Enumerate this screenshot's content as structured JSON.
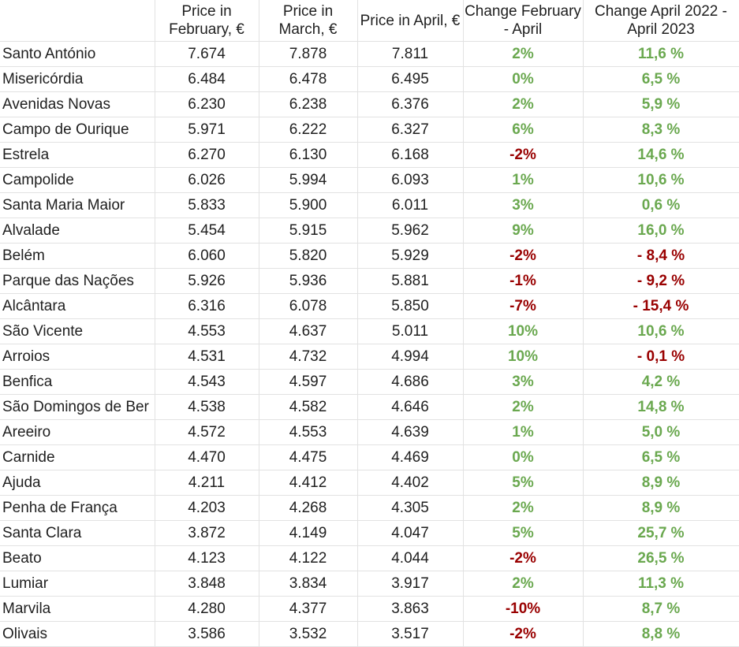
{
  "colors": {
    "positive": "#6aa84f",
    "negative": "#990000"
  },
  "headers": [
    "",
    "Price in February, €",
    "Price in March, €",
    "Price in April, €",
    "Change February - April",
    "Change April 2022 - April 2023"
  ],
  "rows": [
    {
      "name": "Santo António",
      "feb": "7.674",
      "mar": "7.878",
      "apr": "7.811",
      "chg_fa": "2%",
      "chg_yoy": "11,6 %"
    },
    {
      "name": "Misericórdia",
      "feb": "6.484",
      "mar": "6.478",
      "apr": "6.495",
      "chg_fa": "0%",
      "chg_yoy": "6,5 %"
    },
    {
      "name": "Avenidas Novas",
      "feb": "6.230",
      "mar": "6.238",
      "apr": "6.376",
      "chg_fa": "2%",
      "chg_yoy": "5,9 %"
    },
    {
      "name": "Campo de Ourique",
      "feb": "5.971",
      "mar": "6.222",
      "apr": "6.327",
      "chg_fa": "6%",
      "chg_yoy": "8,3 %"
    },
    {
      "name": "Estrela",
      "feb": "6.270",
      "mar": "6.130",
      "apr": "6.168",
      "chg_fa": "-2%",
      "chg_yoy": "14,6 %"
    },
    {
      "name": "Campolide",
      "feb": "6.026",
      "mar": "5.994",
      "apr": "6.093",
      "chg_fa": "1%",
      "chg_yoy": "10,6 %"
    },
    {
      "name": "Santa Maria Maior",
      "feb": "5.833",
      "mar": "5.900",
      "apr": "6.011",
      "chg_fa": "3%",
      "chg_yoy": "0,6 %"
    },
    {
      "name": "Alvalade",
      "feb": "5.454",
      "mar": "5.915",
      "apr": "5.962",
      "chg_fa": "9%",
      "chg_yoy": "16,0 %"
    },
    {
      "name": "Belém",
      "feb": "6.060",
      "mar": "5.820",
      "apr": "5.929",
      "chg_fa": "-2%",
      "chg_yoy": "- 8,4 %"
    },
    {
      "name": "Parque das Nações",
      "feb": "5.926",
      "mar": "5.936",
      "apr": "5.881",
      "chg_fa": "-1%",
      "chg_yoy": "- 9,2 %"
    },
    {
      "name": "Alcântara",
      "feb": "6.316",
      "mar": "6.078",
      "apr": "5.850",
      "chg_fa": "-7%",
      "chg_yoy": "- 15,4 %"
    },
    {
      "name": "São Vicente",
      "feb": "4.553",
      "mar": "4.637",
      "apr": "5.011",
      "chg_fa": "10%",
      "chg_yoy": "10,6 %"
    },
    {
      "name": "Arroios",
      "feb": "4.531",
      "mar": "4.732",
      "apr": "4.994",
      "chg_fa": "10%",
      "chg_yoy": "- 0,1 %"
    },
    {
      "name": "Benfica",
      "feb": "4.543",
      "mar": "4.597",
      "apr": "4.686",
      "chg_fa": "3%",
      "chg_yoy": "4,2 %"
    },
    {
      "name": "São Domingos de Ber",
      "feb": "4.538",
      "mar": "4.582",
      "apr": "4.646",
      "chg_fa": "2%",
      "chg_yoy": "14,8 %"
    },
    {
      "name": "Areeiro",
      "feb": "4.572",
      "mar": "4.553",
      "apr": "4.639",
      "chg_fa": "1%",
      "chg_yoy": "5,0 %"
    },
    {
      "name": "Carnide",
      "feb": "4.470",
      "mar": "4.475",
      "apr": "4.469",
      "chg_fa": "0%",
      "chg_yoy": "6,5 %"
    },
    {
      "name": "Ajuda",
      "feb": "4.211",
      "mar": "4.412",
      "apr": "4.402",
      "chg_fa": "5%",
      "chg_yoy": "8,9 %"
    },
    {
      "name": "Penha de França",
      "feb": "4.203",
      "mar": "4.268",
      "apr": "4.305",
      "chg_fa": "2%",
      "chg_yoy": "8,9 %"
    },
    {
      "name": "Santa Clara",
      "feb": "3.872",
      "mar": "4.149",
      "apr": "4.047",
      "chg_fa": "5%",
      "chg_yoy": "25,7 %"
    },
    {
      "name": "Beato",
      "feb": "4.123",
      "mar": "4.122",
      "apr": "4.044",
      "chg_fa": "-2%",
      "chg_yoy": "26,5 %"
    },
    {
      "name": "Lumiar",
      "feb": "3.848",
      "mar": "3.834",
      "apr": "3.917",
      "chg_fa": "2%",
      "chg_yoy": "11,3 %"
    },
    {
      "name": "Marvila",
      "feb": "4.280",
      "mar": "4.377",
      "apr": "3.863",
      "chg_fa": "-10%",
      "chg_yoy": "8,7 %"
    },
    {
      "name": "Olivais",
      "feb": "3.586",
      "mar": "3.532",
      "apr": "3.517",
      "chg_fa": "-2%",
      "chg_yoy": "8,8 %"
    }
  ]
}
